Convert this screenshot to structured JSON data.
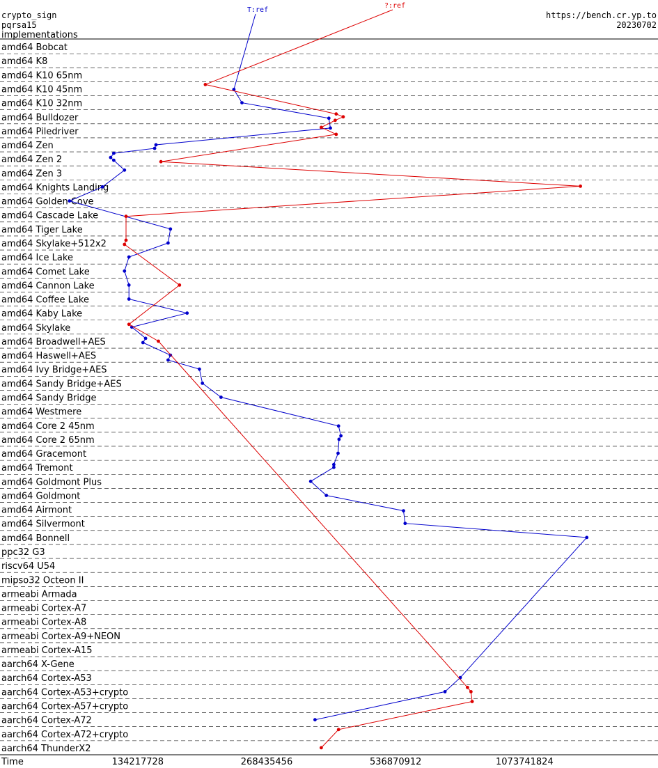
{
  "header": {
    "left_line1": "crypto_sign",
    "left_line2": "pqrsa15",
    "left_line3": "implementations",
    "right_line1": "https://bench.cr.yp.to",
    "right_line2": "20230702"
  },
  "chart_data": {
    "type": "line",
    "xlabel": "Time",
    "x_scale": "log2",
    "x_ticks": [
      134217728,
      268435456,
      536870912,
      1073741824
    ],
    "x_tick_labels": [
      "134217728",
      "268435456",
      "536870912",
      "1073741824"
    ],
    "xlim": [
      64000000,
      2200000000
    ],
    "categories": [
      "amd64 Bobcat",
      "amd64 K8",
      "amd64 K10 65nm",
      "amd64 K10 45nm",
      "amd64 K10 32nm",
      "amd64 Bulldozer",
      "amd64 Piledriver",
      "amd64 Zen",
      "amd64 Zen 2",
      "amd64 Zen 3",
      "amd64 Knights Landing",
      "amd64 Golden Cove",
      "amd64 Cascade Lake",
      "amd64 Tiger Lake",
      "amd64 Skylake+512x2",
      "amd64 Ice Lake",
      "amd64 Comet Lake",
      "amd64 Cannon Lake",
      "amd64 Coffee Lake",
      "amd64 Kaby Lake",
      "amd64 Skylake",
      "amd64 Broadwell+AES",
      "amd64 Haswell+AES",
      "amd64 Ivy Bridge+AES",
      "amd64 Sandy Bridge+AES",
      "amd64 Sandy Bridge",
      "amd64 Westmere",
      "amd64 Core 2 45nm",
      "amd64 Core 2 65nm",
      "amd64 Gracemont",
      "amd64 Tremont",
      "amd64 Goldmont Plus",
      "amd64 Goldmont",
      "amd64 Airmont",
      "amd64 Silvermont",
      "amd64 Bonnell",
      "ppc32 G3",
      "riscv64 U54",
      "mipso32 Octeon II",
      "armeabi Armada",
      "armeabi Cortex-A7",
      "armeabi Cortex-A8",
      "armeabi Cortex-A9+NEON",
      "armeabi Cortex-A15",
      "aarch64 X-Gene",
      "aarch64 Cortex-A53",
      "aarch64 Cortex-A53+crypto",
      "aarch64 Cortex-A57+crypto",
      "aarch64 Cortex-A72",
      "aarch64 Cortex-A72+crypto",
      "aarch64 ThunderX2"
    ],
    "series": [
      {
        "name": "T:ref",
        "color": "#0000cc",
        "points": [
          {
            "cat": 3,
            "off": 0.55,
            "x": 225000000
          },
          {
            "cat": 4,
            "off": 0.5,
            "x": 235000000
          },
          {
            "cat": 5,
            "off": 0.6,
            "x": 375000000
          },
          {
            "cat": 6,
            "off": 0.3,
            "x": 378000000
          },
          {
            "cat": 7,
            "off": 0.5,
            "x": 148000000
          },
          {
            "cat": 7,
            "off": 0.75,
            "x": 147000000
          },
          {
            "cat": 8,
            "off": 0.1,
            "x": 118000000
          },
          {
            "cat": 8,
            "off": 0.4,
            "x": 116000000
          },
          {
            "cat": 8,
            "off": 0.6,
            "x": 118000000
          },
          {
            "cat": 9,
            "off": 0.3,
            "x": 125000000
          },
          {
            "cat": 10,
            "off": 0.5,
            "x": 111000000
          },
          {
            "cat": 11,
            "off": 0.5,
            "x": 93000000
          },
          {
            "cat": 13,
            "off": 0.5,
            "x": 160000000
          },
          {
            "cat": 14,
            "off": 0.5,
            "x": 158000000
          },
          {
            "cat": 15,
            "off": 0.5,
            "x": 128000000
          },
          {
            "cat": 16,
            "off": 0.5,
            "x": 125000000
          },
          {
            "cat": 17,
            "off": 0.5,
            "x": 128000000
          },
          {
            "cat": 18,
            "off": 0.5,
            "x": 128000000
          },
          {
            "cat": 19,
            "off": 0.5,
            "x": 175000000
          },
          {
            "cat": 20,
            "off": 0.5,
            "x": 130000000
          },
          {
            "cat": 21,
            "off": 0.3,
            "x": 140000000
          },
          {
            "cat": 21,
            "off": 0.6,
            "x": 138000000
          },
          {
            "cat": 22,
            "off": 0.5,
            "x": 160000000
          },
          {
            "cat": 22,
            "off": 0.85,
            "x": 158000000
          },
          {
            "cat": 23,
            "off": 0.5,
            "x": 187000000
          },
          {
            "cat": 24,
            "off": 0.5,
            "x": 190000000
          },
          {
            "cat": 25,
            "off": 0.5,
            "x": 210000000
          },
          {
            "cat": 27,
            "off": 0.55,
            "x": 395000000
          },
          {
            "cat": 28,
            "off": 0.25,
            "x": 400000000
          },
          {
            "cat": 28,
            "off": 0.5,
            "x": 396000000
          },
          {
            "cat": 29,
            "off": 0.5,
            "x": 394000000
          },
          {
            "cat": 30,
            "off": 0.3,
            "x": 385000000
          },
          {
            "cat": 30,
            "off": 0.5,
            "x": 385000000
          },
          {
            "cat": 31,
            "off": 0.5,
            "x": 340000000
          },
          {
            "cat": 32,
            "off": 0.5,
            "x": 370000000
          },
          {
            "cat": 33,
            "off": 0.6,
            "x": 560000000
          },
          {
            "cat": 34,
            "off": 0.5,
            "x": 565000000
          },
          {
            "cat": 35,
            "off": 0.5,
            "x": 1500000000
          },
          {
            "cat": 45,
            "off": 0.5,
            "x": 760000000
          },
          {
            "cat": 46,
            "off": 0.5,
            "x": 700000000
          },
          {
            "cat": 48,
            "off": 0.5,
            "x": 348000000
          }
        ]
      },
      {
        "name": "?:ref",
        "color": "#dd0000",
        "points": [
          {
            "cat": 3,
            "off": 0.2,
            "x": 193000000
          },
          {
            "cat": 5,
            "off": 0.3,
            "x": 390000000
          },
          {
            "cat": 5,
            "off": 0.5,
            "x": 405000000
          },
          {
            "cat": 5,
            "off": 0.75,
            "x": 388000000
          },
          {
            "cat": 6,
            "off": 0.25,
            "x": 360000000
          },
          {
            "cat": 6,
            "off": 0.75,
            "x": 390000000
          },
          {
            "cat": 8,
            "off": 0.7,
            "x": 152000000
          },
          {
            "cat": 10,
            "off": 0.45,
            "x": 1450000000
          },
          {
            "cat": 12,
            "off": 0.6,
            "x": 126000000
          },
          {
            "cat": 14,
            "off": 0.3,
            "x": 126000000
          },
          {
            "cat": 14,
            "off": 0.6,
            "x": 125000000
          },
          {
            "cat": 17,
            "off": 0.5,
            "x": 168000000
          },
          {
            "cat": 20,
            "off": 0.3,
            "x": 128000000
          },
          {
            "cat": 21,
            "off": 0.5,
            "x": 150000000
          },
          {
            "cat": 46,
            "off": 0.2,
            "x": 790000000
          },
          {
            "cat": 46,
            "off": 0.5,
            "x": 805000000
          },
          {
            "cat": 47,
            "off": 0.2,
            "x": 810000000
          },
          {
            "cat": 49,
            "off": 0.2,
            "x": 395000000
          },
          {
            "cat": 50,
            "off": 0.5,
            "x": 360000000
          }
        ]
      }
    ]
  }
}
